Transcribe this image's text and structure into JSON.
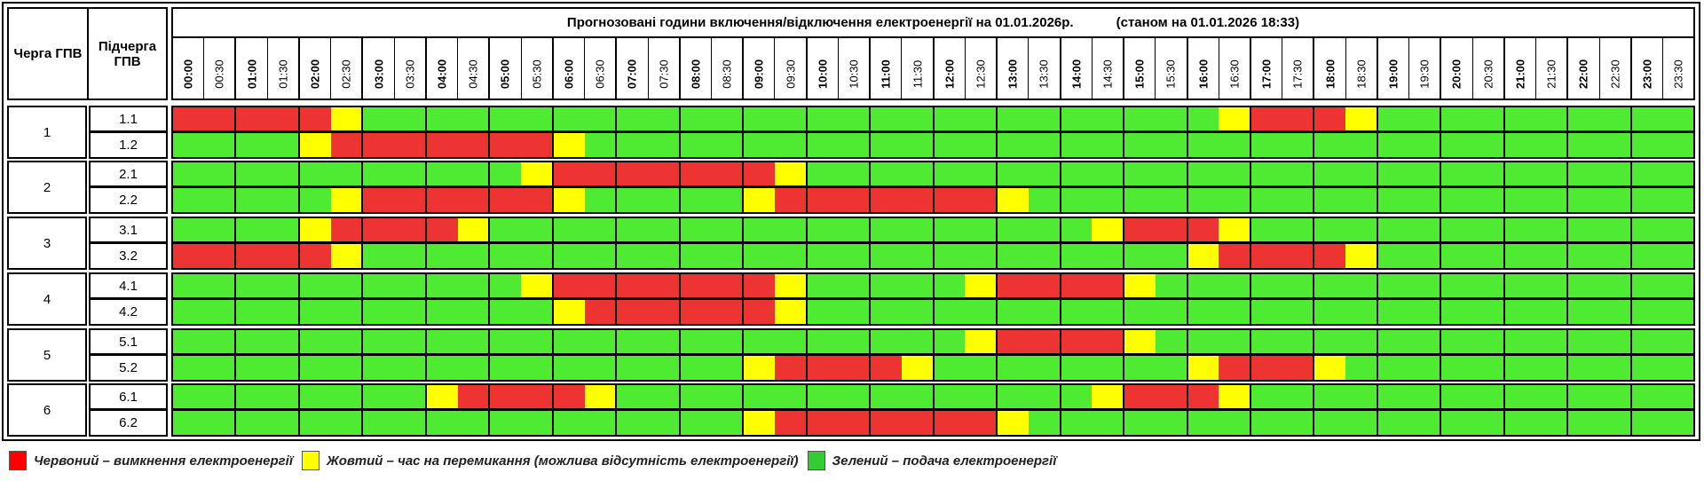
{
  "header": {
    "queue_label": "Черга ГПВ",
    "subqueue_label": "Підчерга ГПВ",
    "title": "Прогнозовані години включення/відключення електроенергії на 01.01.2026р.",
    "as_of": "(станом на 01.01.2026 18:33)"
  },
  "times": [
    "00:00",
    "00:30",
    "01:00",
    "01:30",
    "02:00",
    "02:30",
    "03:00",
    "03:30",
    "04:00",
    "04:30",
    "05:00",
    "05:30",
    "06:00",
    "06:30",
    "07:00",
    "07:30",
    "08:00",
    "08:30",
    "09:00",
    "09:30",
    "10:00",
    "10:30",
    "11:00",
    "11:30",
    "12:00",
    "12:30",
    "13:00",
    "13:30",
    "14:00",
    "14:30",
    "15:00",
    "15:30",
    "16:00",
    "16:30",
    "17:00",
    "17:30",
    "18:00",
    "18:30",
    "19:00",
    "19:30",
    "20:00",
    "20:30",
    "21:00",
    "21:30",
    "22:00",
    "22:30",
    "23:00",
    "23:30"
  ],
  "status_colors": {
    "R": "#ee3333",
    "Y": "#ffff00",
    "G": "#4feb33"
  },
  "groups": [
    {
      "queue": "1",
      "subs": [
        {
          "id": "1.1",
          "runs": [
            [
              "R",
              5
            ],
            [
              "Y",
              1
            ],
            [
              "G",
              27
            ],
            [
              "Y",
              1
            ],
            [
              "R",
              3
            ],
            [
              "Y",
              1
            ],
            [
              "G",
              10
            ]
          ]
        },
        {
          "id": "1.2",
          "runs": [
            [
              "G",
              4
            ],
            [
              "Y",
              1
            ],
            [
              "R",
              7
            ],
            [
              "Y",
              1
            ],
            [
              "G",
              35
            ]
          ]
        }
      ]
    },
    {
      "queue": "2",
      "subs": [
        {
          "id": "2.1",
          "runs": [
            [
              "G",
              11
            ],
            [
              "Y",
              1
            ],
            [
              "R",
              7
            ],
            [
              "Y",
              1
            ],
            [
              "G",
              28
            ]
          ]
        },
        {
          "id": "2.2",
          "runs": [
            [
              "G",
              5
            ],
            [
              "Y",
              1
            ],
            [
              "R",
              6
            ],
            [
              "Y",
              1
            ],
            [
              "G",
              5
            ],
            [
              "Y",
              1
            ],
            [
              "R",
              7
            ],
            [
              "Y",
              1
            ],
            [
              "G",
              21
            ]
          ]
        }
      ]
    },
    {
      "queue": "3",
      "subs": [
        {
          "id": "3.1",
          "runs": [
            [
              "G",
              4
            ],
            [
              "Y",
              1
            ],
            [
              "R",
              4
            ],
            [
              "Y",
              1
            ],
            [
              "G",
              19
            ],
            [
              "Y",
              1
            ],
            [
              "R",
              3
            ],
            [
              "Y",
              1
            ],
            [
              "G",
              14
            ]
          ]
        },
        {
          "id": "3.2",
          "runs": [
            [
              "R",
              5
            ],
            [
              "Y",
              1
            ],
            [
              "G",
              26
            ],
            [
              "Y",
              1
            ],
            [
              "R",
              4
            ],
            [
              "Y",
              1
            ],
            [
              "G",
              10
            ]
          ]
        }
      ]
    },
    {
      "queue": "4",
      "subs": [
        {
          "id": "4.1",
          "runs": [
            [
              "G",
              11
            ],
            [
              "Y",
              1
            ],
            [
              "R",
              7
            ],
            [
              "Y",
              1
            ],
            [
              "G",
              5
            ],
            [
              "Y",
              1
            ],
            [
              "R",
              4
            ],
            [
              "Y",
              1
            ],
            [
              "G",
              17
            ]
          ]
        },
        {
          "id": "4.2",
          "runs": [
            [
              "G",
              12
            ],
            [
              "Y",
              1
            ],
            [
              "R",
              6
            ],
            [
              "Y",
              1
            ],
            [
              "G",
              28
            ]
          ]
        }
      ]
    },
    {
      "queue": "5",
      "subs": [
        {
          "id": "5.1",
          "runs": [
            [
              "G",
              25
            ],
            [
              "Y",
              1
            ],
            [
              "R",
              4
            ],
            [
              "Y",
              1
            ],
            [
              "G",
              17
            ]
          ]
        },
        {
          "id": "5.2",
          "runs": [
            [
              "G",
              18
            ],
            [
              "Y",
              1
            ],
            [
              "R",
              4
            ],
            [
              "Y",
              1
            ],
            [
              "G",
              8
            ],
            [
              "Y",
              1
            ],
            [
              "R",
              3
            ],
            [
              "Y",
              1
            ],
            [
              "G",
              11
            ]
          ]
        }
      ]
    },
    {
      "queue": "6",
      "subs": [
        {
          "id": "6.1",
          "runs": [
            [
              "G",
              8
            ],
            [
              "Y",
              1
            ],
            [
              "R",
              4
            ],
            [
              "Y",
              1
            ],
            [
              "G",
              15
            ],
            [
              "Y",
              1
            ],
            [
              "R",
              3
            ],
            [
              "Y",
              1
            ],
            [
              "G",
              14
            ]
          ]
        },
        {
          "id": "6.2",
          "runs": [
            [
              "G",
              18
            ],
            [
              "Y",
              1
            ],
            [
              "R",
              7
            ],
            [
              "Y",
              1
            ],
            [
              "G",
              21
            ]
          ]
        }
      ]
    }
  ],
  "legend": [
    {
      "label": "Червоний – вимкнення електроенергії",
      "color": "#ff0000"
    },
    {
      "label": "Жовтий – час на перемикання (можлива відсутність електроенергії)",
      "color": "#ffff00"
    },
    {
      "label": "Зелений – подача електроенергії",
      "color": "#33cc33"
    }
  ]
}
